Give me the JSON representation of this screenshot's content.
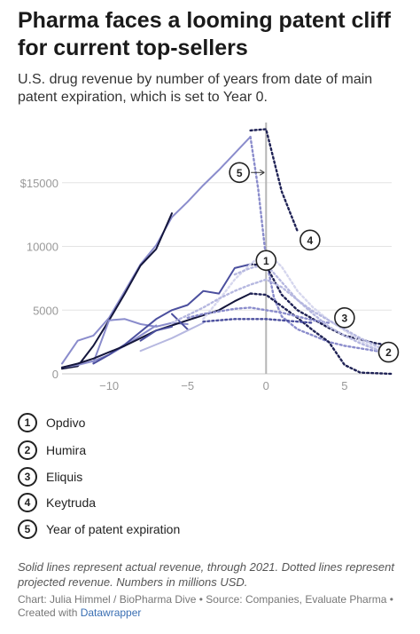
{
  "header": {
    "title": "Pharma faces a looming patent cliff for current top-sellers",
    "subtitle": "U.S. drug revenue by number of years from date of main patent expiration, which is set to Year 0."
  },
  "legend": [
    {
      "num": "1",
      "label": "Opdivo"
    },
    {
      "num": "2",
      "label": "Humira"
    },
    {
      "num": "3",
      "label": "Eliquis"
    },
    {
      "num": "4",
      "label": "Keytruda"
    },
    {
      "num": "5",
      "label": "Year of patent expiration"
    }
  ],
  "footer": {
    "note": "Solid lines represent actual revenue, through 2021. Dotted lines represent projected revenue. Numbers in millions USD.",
    "credit_prefix": "Chart: Julia Himmel / BioPharma Dive • Source: Companies, Evaluate Pharma • Created with ",
    "credit_link": "Datawrapper"
  },
  "colors": {
    "darkest": "#14163c",
    "dark": "#1f2255",
    "mid": "#4b4f9e",
    "light": "#8a8ccc",
    "lighter": "#b6b8e0",
    "lightest": "#d6d7ee",
    "axis_text": "#999999",
    "grid": "#e3e3e3",
    "expiry_line": "#b5b5b5"
  },
  "chart_data": {
    "type": "line",
    "xlim": [
      -13,
      8
    ],
    "ylim": [
      0,
      20000
    ],
    "x_ticks": [
      -10,
      -5,
      0,
      5
    ],
    "x_tick_labels": [
      "−10",
      "−5",
      "0",
      "5"
    ],
    "y_ticks": [
      0,
      5000,
      10000,
      15000
    ],
    "y_tick_labels": [
      "0",
      "5000",
      "10000",
      "$15000"
    ],
    "grid": "horizontal",
    "expiry_x": 0,
    "series": [
      {
        "color": "#8a8ccc",
        "dash": false,
        "x": [
          -13,
          -12,
          -11,
          -10,
          -9,
          -8,
          -7,
          -6,
          -5,
          -4,
          -3,
          -2,
          -1
        ],
        "y": [
          800,
          2600,
          3000,
          4400,
          6500,
          8600,
          10100,
          12300,
          13500,
          14800,
          16000,
          17300,
          18600
        ]
      },
      {
        "color": "#1f2255",
        "dash": true,
        "x": [
          -1,
          0,
          1,
          2
        ],
        "y": [
          19100,
          19200,
          14300,
          11200
        ]
      },
      {
        "color": "#8a8ccc",
        "dash": true,
        "x": [
          -1,
          -0.5,
          0,
          0.5,
          1,
          2,
          3,
          4,
          5,
          6,
          7,
          8
        ],
        "y": [
          18600,
          14500,
          9000,
          6000,
          4500,
          3500,
          3000,
          2500,
          2200,
          2000,
          1800,
          1500
        ]
      },
      {
        "color": "#14163c",
        "dash": false,
        "x": [
          -13,
          -12,
          -11,
          -10,
          -9,
          -8,
          -7,
          -6
        ],
        "y": [
          400,
          600,
          2200,
          4200,
          6300,
          8500,
          9800,
          12600
        ]
      },
      {
        "color": "#8a8ccc",
        "dash": false,
        "x": [
          -13,
          -12,
          -11,
          -10,
          -9,
          -8,
          -7
        ],
        "y": [
          500,
          700,
          1000,
          1500,
          2200,
          3000,
          3800
        ]
      },
      {
        "color": "#8a8ccc",
        "dash": false,
        "x": [
          -11,
          -10,
          -9,
          -8,
          -7,
          -6,
          -5
        ],
        "y": [
          900,
          4200,
          4300,
          3900,
          3700,
          4000,
          3900
        ]
      },
      {
        "color": "#4b4f9e",
        "dash": false,
        "x": [
          -11,
          -10,
          -9,
          -8,
          -7,
          -6,
          -5,
          -4,
          -3,
          -2,
          -1
        ],
        "y": [
          800,
          1500,
          2300,
          3300,
          4300,
          5000,
          5400,
          6500,
          6300,
          8300,
          8600
        ]
      },
      {
        "color": "#1f2255",
        "dash": true,
        "x": [
          -1,
          0,
          1,
          2,
          3,
          4,
          5,
          6,
          7,
          8
        ],
        "y": [
          8600,
          8500,
          6200,
          5000,
          4300,
          3600,
          3000,
          2700,
          2400,
          2200
        ]
      },
      {
        "color": "#14163c",
        "dash": false,
        "x": [
          -13,
          -12,
          -11,
          -10,
          -9,
          -8,
          -7,
          -6,
          -5,
          -4,
          -3,
          -2,
          -1
        ],
        "y": [
          500,
          800,
          1200,
          1700,
          2200,
          2800,
          3400,
          3800,
          4200,
          4600,
          5000,
          5700,
          6300
        ]
      },
      {
        "color": "#1f2255",
        "dash": true,
        "x": [
          -1,
          0,
          1,
          2,
          3,
          4,
          5,
          6,
          7,
          8
        ],
        "y": [
          6300,
          6200,
          5300,
          4400,
          3400,
          2500,
          700,
          100,
          50,
          0
        ]
      },
      {
        "color": "#4b4f9e",
        "dash": false,
        "x": [
          -8,
          -7,
          -6
        ],
        "y": [
          2600,
          3400,
          3700
        ]
      },
      {
        "color": "#4b4f9e",
        "dash": false,
        "x": [
          -6,
          -5
        ],
        "y": [
          4700,
          3500
        ]
      },
      {
        "color": "#b6b8e0",
        "dash": false,
        "x": [
          -8,
          -7,
          -6,
          -5,
          -4
        ],
        "y": [
          1800,
          2300,
          2800,
          3400,
          4000
        ]
      },
      {
        "color": "#d6d7ee",
        "dash": true,
        "x": [
          -4,
          -3,
          -2,
          -1,
          0,
          1,
          2,
          3,
          4,
          5,
          6,
          7,
          8
        ],
        "y": [
          4300,
          5800,
          7400,
          8600,
          9600,
          8400,
          6500,
          5200,
          4200,
          3400,
          2600,
          2000,
          1400
        ]
      },
      {
        "color": "#b6b8e0",
        "dash": true,
        "x": [
          -6,
          -5,
          -4,
          -3,
          -2,
          -1,
          0,
          1,
          2,
          3,
          4,
          5,
          6,
          7,
          8
        ],
        "y": [
          4000,
          4600,
          5200,
          5900,
          6500,
          7000,
          7400,
          6800,
          5800,
          4900,
          4200,
          3500,
          2800,
          2200,
          1600
        ]
      },
      {
        "color": "#8a8ccc",
        "dash": true,
        "x": [
          -5,
          -4,
          -3,
          -2,
          -1,
          0,
          1,
          2,
          3,
          4
        ],
        "y": [
          4400,
          4700,
          4900,
          5100,
          5200,
          5000,
          4800,
          4500,
          4200,
          4000
        ]
      },
      {
        "color": "#4b4f9e",
        "dash": true,
        "x": [
          -4,
          -3,
          -2,
          -1,
          0,
          1,
          2,
          3
        ],
        "y": [
          4100,
          4200,
          4300,
          4300,
          4300,
          4200,
          4100,
          4000
        ]
      },
      {
        "color": "#b6b8e0",
        "dash": true,
        "x": [
          -2,
          -1,
          0,
          1,
          2,
          3,
          4,
          5,
          6,
          7,
          8
        ],
        "y": [
          7800,
          8300,
          8600,
          7200,
          5800,
          4700,
          3700,
          3000,
          2400,
          1900,
          1500
        ]
      }
    ],
    "callouts": [
      {
        "label": "1",
        "x": 0,
        "y": 8900
      },
      {
        "label": "2",
        "x": 7.8,
        "y": 1700
      },
      {
        "label": "3",
        "x": 5,
        "y": 4400
      },
      {
        "label": "4",
        "x": 2.8,
        "y": 10500
      },
      {
        "label": "5",
        "x": -1.7,
        "y": 15800
      }
    ]
  }
}
